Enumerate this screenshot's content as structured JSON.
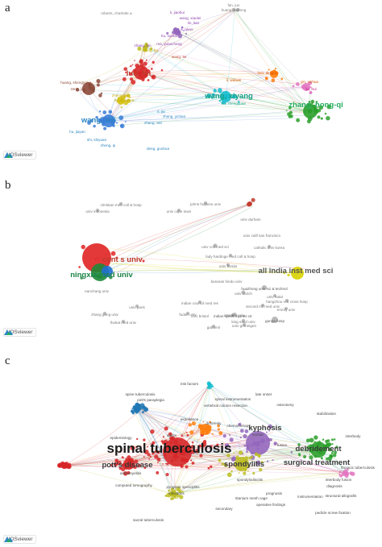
{
  "brand": {
    "logo_text": "VOSviewer"
  },
  "panels": [
    {
      "letter": "a",
      "labels": [
        {
          "text": "fan, jun",
          "c": "#7d7d7d"
        },
        {
          "text": "huang, dairong",
          "c": "#7d7d7d"
        },
        {
          "text": "roberts, charlotte a.",
          "c": "#7d7d7d"
        },
        {
          "text": "li, jiaohui",
          "c": "#8e44ad"
        },
        {
          "text": "wang, xiaolei",
          "c": "#8e44ad"
        },
        {
          "text": "lin, liao",
          "c": "#8e44ad"
        },
        {
          "text": "li, qiwei",
          "c": "#8e44ad"
        },
        {
          "text": "hu, xuebo",
          "c": "#8e44ad"
        },
        {
          "text": "ma, yuanchang",
          "c": "#8e44ad"
        },
        {
          "text": "zhang, bin",
          "c": "#8e44ad"
        },
        {
          "text": "zhang, bo",
          "c": "#c7a800"
        },
        {
          "text": "wang, lei",
          "c": "#c0392b"
        },
        {
          "text": "luo, fei",
          "c": "#c0392b",
          "big": true
        },
        {
          "text": "huang, shengyang",
          "c": "#8b4a3a"
        },
        {
          "text": "zeng, jie",
          "c": "#8b4a3a"
        },
        {
          "text": "li, weiwei",
          "c": "#d35400"
        },
        {
          "text": "hao, dingjun",
          "c": "#d35400"
        },
        {
          "text": "yin, xinhua",
          "c": "#d35400"
        },
        {
          "text": "liu, hui",
          "c": "#c71585"
        },
        {
          "text": "wang, xiyang",
          "c": "#16a085",
          "big": true
        },
        {
          "text": "xu, zhengquan",
          "c": "#16a085"
        },
        {
          "text": "zhang, hong-qi",
          "c": "#27ae60",
          "big": true
        },
        {
          "text": "zheng, jian",
          "c": "#c7a800"
        },
        {
          "text": "liu, shaohua",
          "c": "#c7a800"
        },
        {
          "text": "wang, zili",
          "c": "#2e86c1",
          "big": true
        },
        {
          "text": "zhang, wei",
          "c": "#2e86c1"
        },
        {
          "text": "shi, shiyuan",
          "c": "#2e86c1"
        },
        {
          "text": "zheng, qi",
          "c": "#2e86c1"
        },
        {
          "text": "deng, guohua",
          "c": "#2e86c1"
        },
        {
          "text": "hu, jiayan",
          "c": "#2e86c1"
        },
        {
          "text": "li, jia",
          "c": "#2e86c1"
        },
        {
          "text": "zhang, yichao",
          "c": "#2e86c1"
        }
      ]
    },
    {
      "letter": "b",
      "labels": [
        {
          "text": "christian med coll & hosp",
          "c": "#777"
        },
        {
          "text": "johns hopkins univ",
          "c": "#777"
        },
        {
          "text": "univ indonesia",
          "c": "#777"
        },
        {
          "text": "univ cape town",
          "c": "#777"
        },
        {
          "text": "univ durham",
          "c": "#777"
        },
        {
          "text": "univ calif san francisco",
          "c": "#777"
        },
        {
          "text": "univ coll med sci",
          "c": "#777"
        },
        {
          "text": "catholic univ korea",
          "c": "#777"
        },
        {
          "text": "cent s univ",
          "c": "#c0392b",
          "big": true
        },
        {
          "text": "lady hardinge med coll & hosp",
          "c": "#777"
        },
        {
          "text": "ningxia med univ",
          "c": "#1e8449",
          "big": true
        },
        {
          "text": "all india inst med sci",
          "c": "#555",
          "big": true
        },
        {
          "text": "univ florida",
          "c": "#777"
        },
        {
          "text": "banaras hindu univ",
          "c": "#777"
        },
        {
          "text": "huazhong univ sci & technol",
          "c": "#555"
        },
        {
          "text": "univ zurich",
          "c": "#777"
        },
        {
          "text": "nanchang univ",
          "c": "#777"
        },
        {
          "text": "univ natal",
          "c": "#777"
        },
        {
          "text": "hangzhou red cross hosp",
          "c": "#777"
        },
        {
          "text": "indian council med res",
          "c": "#777"
        },
        {
          "text": "second mil med univ",
          "c": "#777"
        },
        {
          "text": "emory univ",
          "c": "#777"
        },
        {
          "text": "istanbul univ",
          "c": "#777"
        },
        {
          "text": "univ bristol",
          "c": "#777"
        },
        {
          "text": "ganga hosp",
          "c": "#555"
        },
        {
          "text": "univ groningen",
          "c": "#777"
        },
        {
          "text": "univ paris",
          "c": "#777"
        },
        {
          "text": "zhang gung univ",
          "c": "#777"
        },
        {
          "text": "fudan univ",
          "c": "#777"
        },
        {
          "text": "indian spinal injuries ctr",
          "c": "#555"
        },
        {
          "text": "fiwbat med univ",
          "c": "#777"
        },
        {
          "text": "king saud univ",
          "c": "#777"
        },
        {
          "text": "gattamri",
          "c": "#777"
        }
      ]
    },
    {
      "letter": "c",
      "labels": [
        {
          "text": "risk factors",
          "c": "#4a4a4a"
        },
        {
          "text": "spine tuberculosis",
          "c": "#4a4a4a"
        },
        {
          "text": "late onset",
          "c": "#4a4a4a"
        },
        {
          "text": "pott's paraplegia",
          "c": "#4a4a4a"
        },
        {
          "text": "spinal instrumentation",
          "c": "#4a4a4a"
        },
        {
          "text": "vertebral column resection",
          "c": "#4a4a4a"
        },
        {
          "text": "osteotomy",
          "c": "#4a4a4a"
        },
        {
          "text": "stabilization",
          "c": "#4a4a4a"
        },
        {
          "text": "experience",
          "c": "#4a4a4a"
        },
        {
          "text": "deformity",
          "c": "#4a4a4a"
        },
        {
          "text": "chemotherapy",
          "c": "#4a4a4a"
        },
        {
          "text": "kyphosis",
          "c": "#3a3a3a",
          "big": true
        },
        {
          "text": "debridement",
          "c": "#3a3a3a",
          "big": true
        },
        {
          "text": "interbody",
          "c": "#4a4a4a"
        },
        {
          "text": "spinal tuberculosis",
          "c": "#1a1a1a",
          "huge": true
        },
        {
          "text": "pott's disease",
          "c": "#3a3a3a",
          "big": true
        },
        {
          "text": "surgical treatment",
          "c": "#3a3a3a",
          "big": true
        },
        {
          "text": "spondylitis",
          "c": "#3a3a3a",
          "big": true
        },
        {
          "text": "lumbar",
          "c": "#4a4a4a"
        },
        {
          "text": "epidemiology",
          "c": "#4a4a4a"
        },
        {
          "text": "interbody fusion",
          "c": "#4a4a4a"
        },
        {
          "text": "spondylodiscitis",
          "c": "#4a4a4a"
        },
        {
          "text": "thoracic tuberculosis",
          "c": "#4a4a4a"
        },
        {
          "text": "computed tomography",
          "c": "#4a4a4a"
        },
        {
          "text": "pyogenic spondylitis",
          "c": "#4a4a4a"
        },
        {
          "text": "infections",
          "c": "#4a4a4a"
        },
        {
          "text": "titanium mesh cage",
          "c": "#4a4a4a"
        },
        {
          "text": "operative findings",
          "c": "#4a4a4a"
        },
        {
          "text": "prognosis",
          "c": "#4a4a4a"
        },
        {
          "text": "instrumentation",
          "c": "#4a4a4a"
        },
        {
          "text": "adults",
          "c": "#4a4a4a"
        },
        {
          "text": "fusion",
          "c": "#4a4a4a"
        },
        {
          "text": "diagnosis",
          "c": "#4a4a4a"
        },
        {
          "text": "structural allografts",
          "c": "#4a4a4a"
        },
        {
          "text": "secondary",
          "c": "#4a4a4a"
        },
        {
          "text": "sacral tuberculosis",
          "c": "#4a4a4a"
        },
        {
          "text": "pedicle screw fixation",
          "c": "#4a4a4a"
        },
        {
          "text": "osteomyelitis",
          "c": "#4a4a4a"
        }
      ]
    }
  ]
}
